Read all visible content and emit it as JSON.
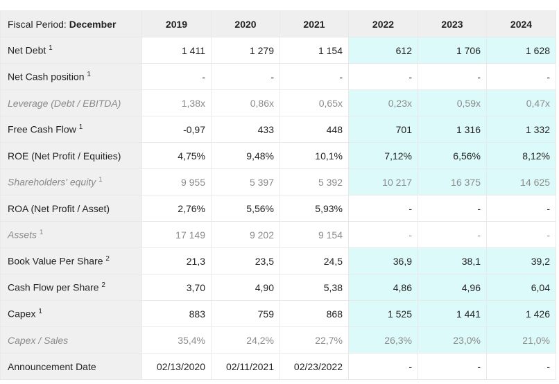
{
  "header": {
    "label": "Fiscal Period:",
    "period": "December",
    "years": [
      "2019",
      "2020",
      "2021",
      "2022",
      "2023",
      "2024"
    ]
  },
  "rows": [
    {
      "label": "Net Debt",
      "note": "1",
      "values": [
        "1 411",
        "1 279",
        "1 154",
        "612",
        "1 706",
        "1 628"
      ],
      "muted": false,
      "highlight": true
    },
    {
      "label": "Net Cash position",
      "note": "1",
      "values": [
        "-",
        "-",
        "-",
        "-",
        "-",
        "-"
      ],
      "muted": false,
      "highlight": false
    },
    {
      "label": "Leverage (Debt / EBITDA)",
      "values": [
        "1,38x",
        "0,86x",
        "0,65x",
        "0,23x",
        "0,59x",
        "0,47x"
      ],
      "muted": true,
      "highlight": true
    },
    {
      "label": "Free Cash Flow",
      "note": "1",
      "values": [
        "-0,97",
        "433",
        "448",
        "701",
        "1 316",
        "1 332"
      ],
      "muted": false,
      "highlight": true
    },
    {
      "label": "ROE (Net Profit / Equities)",
      "values": [
        "4,75%",
        "9,48%",
        "10,1%",
        "7,12%",
        "6,56%",
        "8,12%"
      ],
      "muted": false,
      "highlight": true
    },
    {
      "label": "Shareholders' equity",
      "note": "1",
      "values": [
        "9 955",
        "5 397",
        "5 392",
        "10 217",
        "16 375",
        "14 625"
      ],
      "muted": true,
      "highlight": true
    },
    {
      "label": "ROA (Net Profit / Asset)",
      "values": [
        "2,76%",
        "5,56%",
        "5,93%",
        "-",
        "-",
        "-"
      ],
      "muted": false,
      "highlight": false
    },
    {
      "label": "Assets",
      "note": "1",
      "values": [
        "17 149",
        "9 202",
        "9 154",
        "-",
        "-",
        "-"
      ],
      "muted": true,
      "highlight": false
    },
    {
      "label": "Book Value Per Share",
      "note": "2",
      "values": [
        "21,3",
        "23,5",
        "24,5",
        "36,9",
        "38,1",
        "39,2"
      ],
      "muted": false,
      "highlight": true
    },
    {
      "label": "Cash Flow per Share",
      "note": "2",
      "values": [
        "3,70",
        "4,90",
        "5,38",
        "4,86",
        "4,96",
        "6,04"
      ],
      "muted": false,
      "highlight": true
    },
    {
      "label": "Capex",
      "note": "1",
      "values": [
        "883",
        "759",
        "868",
        "1 525",
        "1 441",
        "1 426"
      ],
      "muted": false,
      "highlight": true
    },
    {
      "label": "Capex / Sales",
      "values": [
        "35,4%",
        "24,2%",
        "22,7%",
        "26,3%",
        "23,0%",
        "21,0%"
      ],
      "muted": true,
      "highlight": true
    },
    {
      "label": "Announcement Date",
      "values": [
        "02/13/2020",
        "02/11/2021",
        "02/23/2022",
        "-",
        "-",
        "-"
      ],
      "muted": false,
      "highlight": false
    }
  ]
}
